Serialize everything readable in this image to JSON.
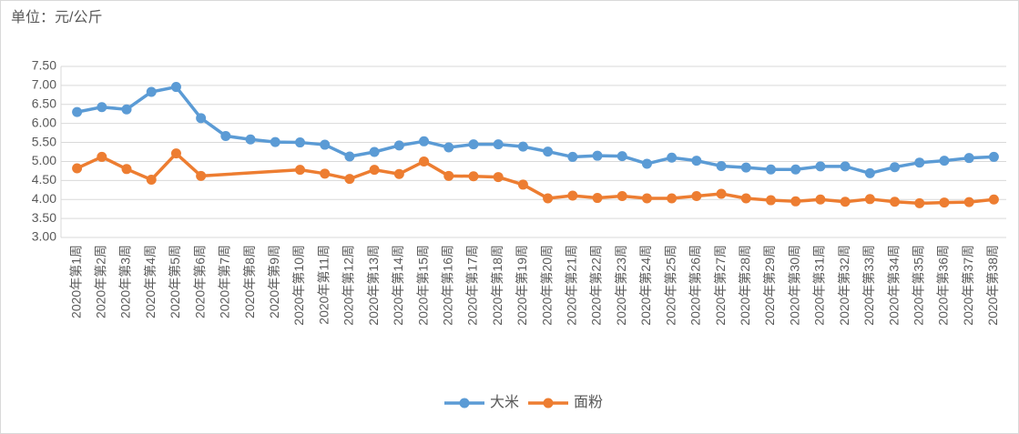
{
  "chart_data": {
    "type": "line",
    "y_label": "单位：元/公斤",
    "categories": [
      "2020年第1周",
      "2020年第2周",
      "2020年第3周",
      "2020年第4周",
      "2020年第5周",
      "2020年第6周",
      "2020年第7周",
      "2020年第8周",
      "2020年第9周",
      "2020年第10周",
      "2020年第11周",
      "2020年第12周",
      "2020年第13周",
      "2020年第14周",
      "2020年第15周",
      "2020年第16周",
      "2020年第17周",
      "2020年第18周",
      "2020年第19周",
      "2020年第20周",
      "2020年第21周",
      "2020年第22周",
      "2020年第23周",
      "2020年第24周",
      "2020年第25周",
      "2020年第26周",
      "2020年第27周",
      "2020年第28周",
      "2020年第29周",
      "2020年第30周",
      "2020年第31周",
      "2020年第32周",
      "2020年第33周",
      "2020年第34周",
      "2020年第35周",
      "2020年第36周",
      "2020年第37周",
      "2020年第38周"
    ],
    "series": [
      {
        "name": "大米",
        "color": "#5b9bd5",
        "values": [
          6.3,
          6.43,
          6.37,
          6.83,
          6.96,
          6.14,
          5.67,
          5.58,
          5.51,
          5.5,
          5.44,
          5.13,
          5.25,
          5.42,
          5.53,
          5.37,
          5.45,
          5.45,
          5.39,
          5.26,
          5.12,
          5.15,
          5.14,
          4.94,
          5.1,
          5.02,
          4.88,
          4.84,
          4.79,
          4.79,
          4.87,
          4.87,
          4.69,
          4.85,
          4.97,
          5.02,
          5.09,
          5.12
        ]
      },
      {
        "name": "面粉",
        "color": "#ed7d31",
        "values": [
          4.82,
          5.12,
          4.8,
          4.52,
          5.21,
          4.62,
          null,
          null,
          null,
          4.78,
          4.68,
          4.54,
          4.78,
          4.67,
          5.0,
          4.62,
          4.61,
          4.59,
          4.39,
          4.03,
          4.1,
          4.04,
          4.09,
          4.03,
          4.03,
          4.09,
          4.15,
          4.03,
          3.98,
          3.95,
          4.0,
          3.94,
          4.01,
          3.94,
          3.9,
          3.92,
          3.93,
          4.0
        ]
      }
    ],
    "ylim": [
      3,
      7.5
    ],
    "yticks": [
      {
        "value": 3,
        "label": "3.00"
      },
      {
        "value": 3.5,
        "label": "3.50"
      },
      {
        "value": 4,
        "label": "4.00"
      },
      {
        "value": 4.5,
        "label": "4.50"
      },
      {
        "value": 5,
        "label": "5.00"
      },
      {
        "value": 5.5,
        "label": "5.50"
      },
      {
        "value": 6,
        "label": "6.00"
      },
      {
        "value": 6.5,
        "label": "6.50"
      },
      {
        "value": 7,
        "label": "7.00"
      },
      {
        "value": 7.5,
        "label": "7.50"
      }
    ],
    "grid": true,
    "connect_gaps": true,
    "legend": "bottom"
  }
}
